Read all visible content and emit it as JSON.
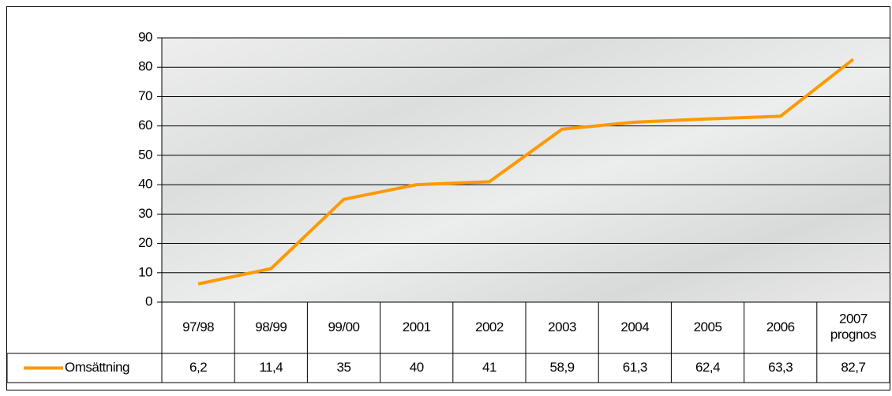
{
  "chart_data": {
    "type": "line",
    "categories": [
      "97/98",
      "98/99",
      "99/00",
      "2001",
      "2002",
      "2003",
      "2004",
      "2005",
      "2006",
      "2007\nprognos"
    ],
    "series": [
      {
        "name": "Omsättning",
        "color": "#ff9900",
        "values": [
          6.2,
          11.4,
          35,
          40,
          41,
          58.9,
          61.3,
          62.4,
          63.3,
          82.7
        ],
        "value_labels": [
          "6,2",
          "11,4",
          "35",
          "40",
          "41",
          "58,9",
          "61,3",
          "62,4",
          "63,3",
          "82,7"
        ]
      }
    ],
    "ylim": [
      0,
      90
    ],
    "yticks": [
      0,
      10,
      20,
      30,
      40,
      50,
      60,
      70,
      80,
      90
    ],
    "grid": true
  }
}
